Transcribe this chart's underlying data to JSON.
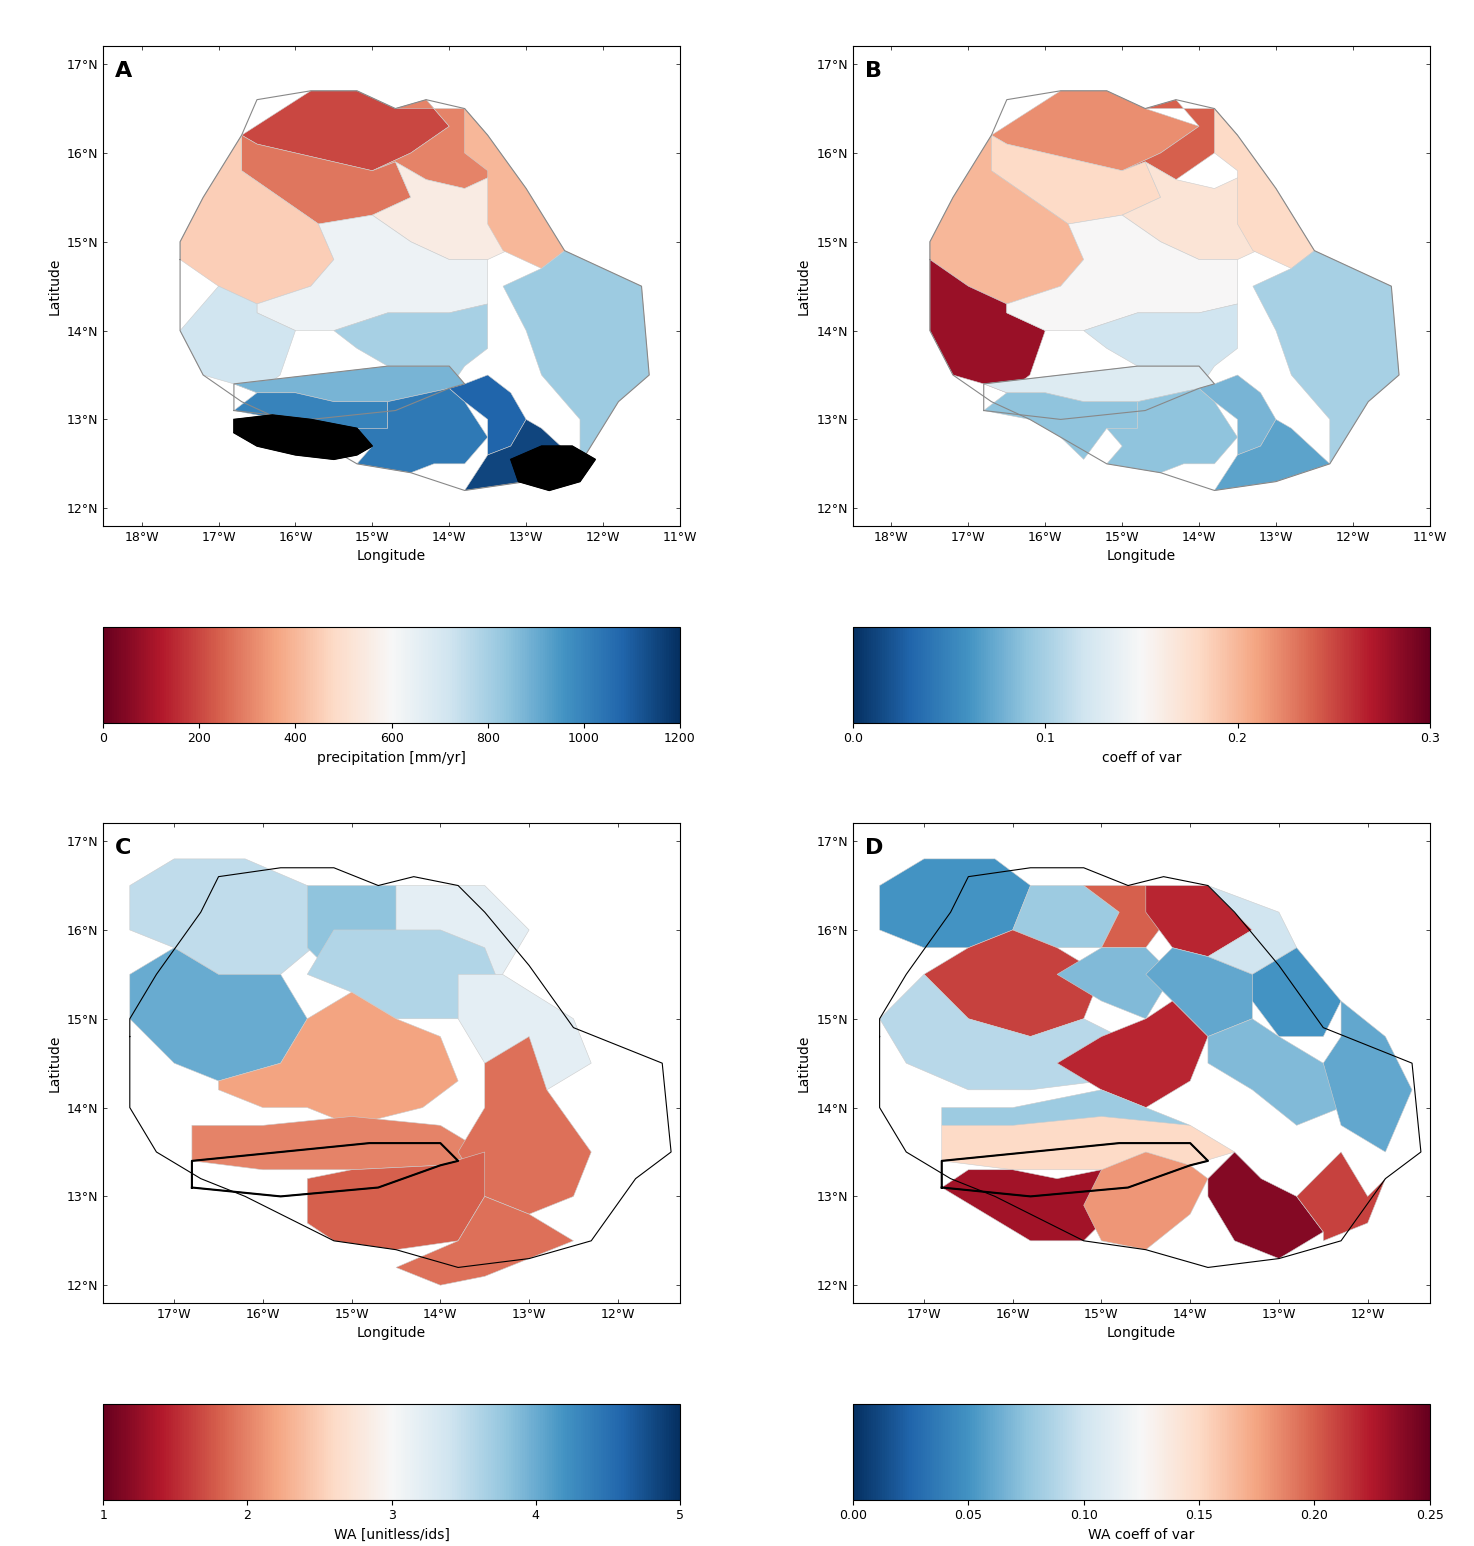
{
  "panel_labels": [
    "A",
    "B",
    "C",
    "D"
  ],
  "panel_A": {
    "title": "",
    "colorbar_label": "precipitation [mm/yr]",
    "vmin": 0,
    "vmax": 1200,
    "ticks": [
      0,
      200,
      400,
      600,
      800,
      1000,
      1200
    ],
    "cmap_direction": "RdBu",
    "xlim": [
      -18.5,
      -11.0
    ],
    "ylim": [
      11.8,
      17.2
    ],
    "xticks": [
      -18,
      -17,
      -16,
      -15,
      -14,
      -13,
      -12,
      -11
    ],
    "yticks": [
      12,
      13,
      14,
      15,
      16,
      17
    ],
    "xlabel": "Longitude",
    "ylabel": "Latitude"
  },
  "panel_B": {
    "title": "",
    "colorbar_label": "coeff of var",
    "vmin": 0,
    "vmax": 0.3,
    "ticks": [
      0,
      0.1,
      0.2,
      0.3
    ],
    "cmap_direction": "RdBu_r",
    "xlim": [
      -18.5,
      -11.0
    ],
    "ylim": [
      11.8,
      17.2
    ],
    "xticks": [
      -18,
      -17,
      -16,
      -15,
      -14,
      -13,
      -12,
      -11
    ],
    "yticks": [
      12,
      13,
      14,
      15,
      16,
      17
    ],
    "xlabel": "Longitude",
    "ylabel": "Latitude"
  },
  "panel_C": {
    "title": "",
    "colorbar_label": "WA [unitless/ids]",
    "vmin": 1,
    "vmax": 5,
    "ticks": [
      1,
      2,
      3,
      4,
      5
    ],
    "cmap_direction": "RdBu",
    "xlim": [
      -17.8,
      -11.3
    ],
    "ylim": [
      11.8,
      17.2
    ],
    "xticks": [
      -17,
      -16,
      -15,
      -14,
      -13,
      -12
    ],
    "yticks": [
      12,
      13,
      14,
      15,
      16,
      17
    ],
    "xlabel": "Longitude",
    "ylabel": "Latitude"
  },
  "panel_D": {
    "title": "",
    "colorbar_label": "WA coeff of var",
    "vmin": 0,
    "vmax": 0.25,
    "ticks": [
      0,
      0.05,
      0.1,
      0.15,
      0.2,
      0.25
    ],
    "cmap_direction": "RdBu_r",
    "xlim": [
      -17.8,
      -11.3
    ],
    "ylim": [
      11.8,
      17.2
    ],
    "xticks": [
      -17,
      -16,
      -15,
      -14,
      -13,
      -12
    ],
    "yticks": [
      12,
      13,
      14,
      15,
      16,
      17
    ],
    "xlabel": "Longitude",
    "ylabel": "Latitude"
  },
  "bg_color": "#ffffff",
  "border_color_AB": "#888888",
  "border_color_CD": "#000000",
  "label_fontsize": 14,
  "tick_fontsize": 9,
  "axis_label_fontsize": 10
}
